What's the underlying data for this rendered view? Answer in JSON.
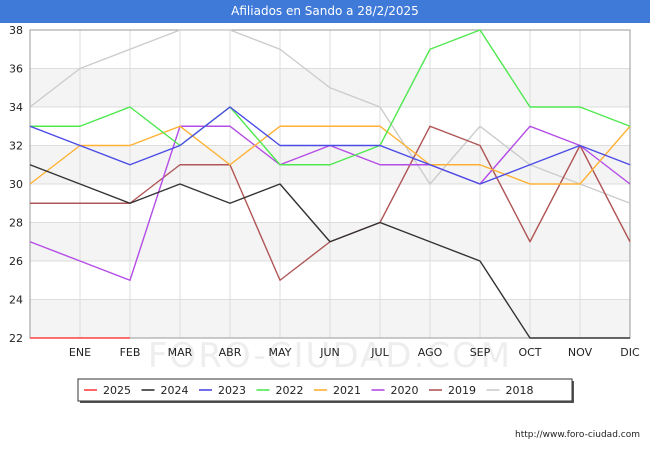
{
  "title": "Afiliados en Sando a 28/2/2025",
  "footer": "http://www.foro-ciudad.com",
  "watermark": "FORO-CIUDAD.COM",
  "chart_data": {
    "type": "line",
    "categories": [
      "",
      "ENE",
      "FEB",
      "MAR",
      "ABR",
      "MAY",
      "JUN",
      "JUL",
      "AGO",
      "SEP",
      "OCT",
      "NOV",
      "DIC"
    ],
    "ylim": [
      22,
      38
    ],
    "yticks": [
      22,
      24,
      26,
      28,
      30,
      32,
      34,
      36,
      38
    ],
    "grid": true,
    "legend_position": "bottom",
    "series": [
      {
        "name": "2025",
        "color": "#ff4040",
        "values": [
          22,
          22,
          22,
          null,
          null,
          null,
          null,
          null,
          null,
          null,
          null,
          null,
          null
        ]
      },
      {
        "name": "2024",
        "color": "#333333",
        "values": [
          31,
          30,
          29,
          30,
          29,
          30,
          27,
          28,
          27,
          26,
          22,
          22,
          22
        ]
      },
      {
        "name": "2023",
        "color": "#4b4be6",
        "values": [
          33,
          32,
          31,
          32,
          34,
          32,
          32,
          32,
          31,
          30,
          31,
          32,
          31
        ]
      },
      {
        "name": "2022",
        "color": "#4fe84f",
        "values": [
          33,
          33,
          34,
          32,
          34,
          31,
          31,
          32,
          37,
          38,
          34,
          34,
          33
        ]
      },
      {
        "name": "2021",
        "color": "#ffb133",
        "values": [
          30,
          32,
          32,
          33,
          31,
          33,
          33,
          33,
          31,
          31,
          30,
          30,
          33
        ]
      },
      {
        "name": "2020",
        "color": "#b44ce6",
        "values": [
          27,
          26,
          25,
          33,
          33,
          31,
          32,
          31,
          31,
          30,
          33,
          32,
          30
        ]
      },
      {
        "name": "2019",
        "color": "#b05656",
        "values": [
          29,
          29,
          29,
          31,
          31,
          25,
          27,
          28,
          33,
          32,
          27,
          32,
          27
        ]
      },
      {
        "name": "2018",
        "color": "#cccccc",
        "values": [
          34,
          36,
          37,
          38,
          38,
          37,
          35,
          34,
          30,
          33,
          31,
          30,
          29
        ]
      }
    ]
  }
}
